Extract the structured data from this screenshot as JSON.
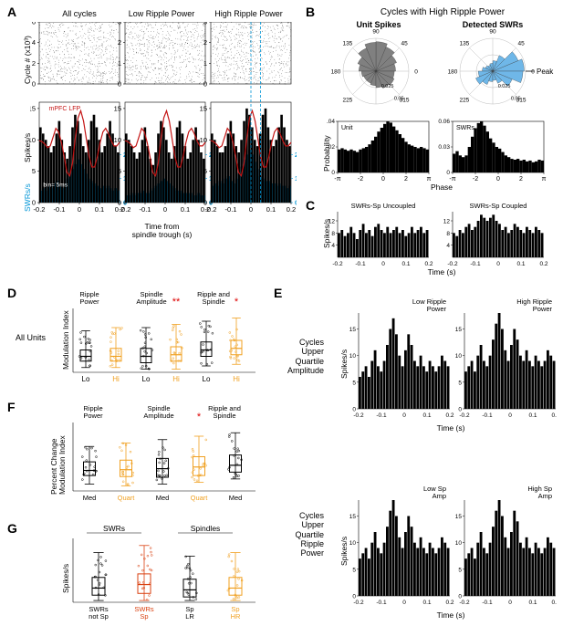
{
  "panels": {
    "A": {
      "label": "A",
      "col_titles": [
        "All cycles",
        "Low Ripple Power",
        "High Ripple Power"
      ],
      "ylabel_raster": "Cycle # (x10³)",
      "ylabel_psth1": "Spikes/s",
      "ylabel_psth2": "SWRs/s",
      "xlabel": "Time from\nspindle trough (s)",
      "raster_yticks": [
        0,
        1,
        2,
        3
      ],
      "raster_yticks_all": [
        0,
        2,
        4,
        6
      ],
      "psth_yticks_spikes": [
        0,
        5,
        10,
        15
      ],
      "psth_yticks_swrs": [
        0,
        1,
        2
      ],
      "xticks": [
        -0.2,
        -0.1,
        0,
        0.1,
        0.2
      ],
      "bin_note": "bin= 5ms",
      "lfp_label": "mPFC LFP",
      "lfp_color": "#c41414",
      "swr_bar_color": "#0095d6",
      "swr_axis_color": "#0095d6",
      "bar_color": "#000000",
      "raster_bg": "#ffffff",
      "psth_data_all": [
        12,
        11,
        10,
        9,
        8,
        9,
        11,
        13,
        10,
        8,
        7,
        9,
        12,
        14,
        13,
        11,
        9,
        8,
        10,
        13,
        14,
        12,
        10,
        8,
        9,
        11,
        13,
        11,
        9,
        8
      ],
      "psth_data_lo": [
        11,
        10,
        9,
        8,
        7,
        8,
        10,
        12,
        9,
        7,
        6,
        8,
        11,
        13,
        12,
        10,
        8,
        7,
        9,
        12,
        13,
        11,
        9,
        7,
        8,
        10,
        12,
        10,
        8,
        7
      ],
      "psth_data_hi": [
        11,
        10,
        9,
        8,
        8,
        9,
        11,
        13,
        11,
        9,
        8,
        10,
        13,
        15,
        14,
        12,
        10,
        9,
        11,
        14,
        15,
        12,
        10,
        9,
        10,
        12,
        14,
        12,
        10,
        9
      ],
      "swr_data_all": [
        0.5,
        0.6,
        0.5,
        0.7,
        0.6,
        0.8,
        0.9,
        0.7,
        0.6,
        0.8,
        1.0,
        1.2,
        1.4,
        1.6,
        1.8,
        1.6,
        1.4,
        1.2,
        1.0,
        0.9,
        0.8,
        0.7,
        0.6,
        0.7,
        0.6,
        0.7,
        0.6,
        0.5,
        0.6,
        0.5
      ],
      "swr_data_lo": [
        0.3,
        0.3,
        0.4,
        0.3,
        0.4,
        0.4,
        0.5,
        0.4,
        0.4,
        0.5,
        0.6,
        0.7,
        0.8,
        0.9,
        1.0,
        0.9,
        0.8,
        0.7,
        0.6,
        0.5,
        0.5,
        0.4,
        0.4,
        0.4,
        0.4,
        0.3,
        0.3,
        0.4,
        0.3,
        0.3
      ],
      "swr_data_hi": [
        0.7,
        0.8,
        0.7,
        0.9,
        0.8,
        1.0,
        1.1,
        0.9,
        0.8,
        1.0,
        1.2,
        1.5,
        1.8,
        2.0,
        2.2,
        2.0,
        1.7,
        1.4,
        1.1,
        1.0,
        0.9,
        0.9,
        0.8,
        0.8,
        0.7,
        0.8,
        0.7,
        0.7,
        0.6,
        0.7
      ],
      "lfp_wave": [
        0.05,
        0.02,
        -0.05,
        -0.15,
        -0.1,
        0.15,
        0.4,
        0.3,
        0.0,
        -0.4,
        -0.85,
        -0.95,
        -0.6,
        0.1,
        0.7,
        0.9,
        0.6,
        0.1,
        -0.4,
        -0.7,
        -0.7,
        -0.4,
        0.0,
        0.3,
        0.4,
        0.25,
        0.05,
        -0.1,
        -0.1,
        0.0
      ]
    },
    "B": {
      "label": "B",
      "title": "Cycles with High Ripple Power",
      "sub_titles": [
        "Unit Spikes",
        "Detected SWRs"
      ],
      "polar_angles": [
        0,
        45,
        90,
        135,
        180,
        225,
        270,
        315
      ],
      "polar_rticks": [
        0,
        0.025,
        0.05
      ],
      "unit_polar_vals": [
        0.03,
        0.034,
        0.04,
        0.045,
        0.044,
        0.038,
        0.03,
        0.026,
        0.022,
        0.02,
        0.02,
        0.022,
        0.025,
        0.028,
        0.03,
        0.028
      ],
      "swr_polar_vals": [
        0.048,
        0.042,
        0.026,
        0.016,
        0.012,
        0.01,
        0.012,
        0.016,
        0.022,
        0.028,
        0.022,
        0.016,
        0.014,
        0.02,
        0.032,
        0.046
      ],
      "unit_polar_color": "#808080",
      "swr_polar_color": "#6fb7e8",
      "peak_label": "Peak",
      "hist_ylabel": "Probability",
      "hist_xlabel": "Phase",
      "hist_xticks": [
        "-π",
        "-2",
        "0",
        "2",
        "π"
      ],
      "unit_hist_label": "Unit",
      "swr_hist_label": "SWRs",
      "unit_hist_ymax": 0.04,
      "swr_hist_ymax": 0.06,
      "unit_hist": [
        0.018,
        0.019,
        0.018,
        0.017,
        0.018,
        0.017,
        0.016,
        0.018,
        0.019,
        0.02,
        0.022,
        0.025,
        0.028,
        0.032,
        0.035,
        0.038,
        0.04,
        0.039,
        0.036,
        0.033,
        0.03,
        0.027,
        0.024,
        0.022,
        0.021,
        0.02,
        0.019,
        0.02,
        0.019,
        0.018
      ],
      "swr_hist": [
        0.022,
        0.025,
        0.02,
        0.018,
        0.02,
        0.03,
        0.042,
        0.052,
        0.058,
        0.06,
        0.055,
        0.048,
        0.04,
        0.035,
        0.03,
        0.028,
        0.024,
        0.02,
        0.018,
        0.016,
        0.015,
        0.016,
        0.014,
        0.015,
        0.013,
        0.014,
        0.012,
        0.013,
        0.015,
        0.014
      ]
    },
    "C": {
      "label": "C",
      "titles": [
        "SWRs-Sp Uncoupled",
        "SWRs-Sp Coupled"
      ],
      "ylabel": "Spikes/s",
      "xlabel": "Time (s)",
      "yticks": [
        4,
        8,
        12
      ],
      "xticks": [
        -0.2,
        -0.1,
        0,
        0.1,
        0.2
      ],
      "data_uncoupled": [
        8,
        9,
        7,
        8,
        10,
        8,
        6,
        9,
        11,
        8,
        9,
        7,
        10,
        11,
        9,
        8,
        10,
        8,
        9,
        10,
        8,
        9,
        7,
        8,
        10,
        8,
        9,
        10,
        8,
        9
      ],
      "data_coupled": [
        8,
        7,
        9,
        8,
        10,
        11,
        9,
        10,
        12,
        14,
        13,
        12,
        13,
        14,
        12,
        11,
        9,
        10,
        8,
        9,
        11,
        10,
        9,
        8,
        10,
        9,
        8,
        10,
        9,
        8
      ]
    },
    "D": {
      "label": "D",
      "side_label": "All Units",
      "ylabel": "Modulation Index",
      "col_titles": [
        "Ripple\nPower",
        "Spindle\nAmplitude",
        "Ripple and\nSpindle"
      ],
      "xticklabels": [
        "Lo",
        "Hi",
        "Lo",
        "Hi",
        "Lo",
        "Hi"
      ],
      "hi_color": "#f0a020",
      "lo_color": "#000000",
      "ymax": 2.0,
      "box_data": {
        "lo_rp": {
          "q1": 0.35,
          "med": 0.5,
          "q3": 0.7,
          "wlo": 0.15,
          "whi": 1.3
        },
        "hi_rp": {
          "q1": 0.35,
          "med": 0.5,
          "q3": 0.75,
          "wlo": 0.15,
          "whi": 1.4
        },
        "lo_sa": {
          "q1": 0.3,
          "med": 0.5,
          "q3": 0.75,
          "wlo": 0.1,
          "whi": 1.4
        },
        "hi_sa": {
          "q1": 0.35,
          "med": 0.55,
          "q3": 0.8,
          "wlo": 0.1,
          "whi": 1.5
        },
        "lo_rs": {
          "q1": 0.5,
          "med": 0.7,
          "q3": 0.95,
          "wlo": 0.2,
          "whi": 1.6
        },
        "hi_rs": {
          "q1": 0.55,
          "med": 0.75,
          "q3": 1.0,
          "wlo": 0.25,
          "whi": 1.7
        }
      },
      "sig_markers": [
        "**",
        "*"
      ]
    },
    "E": {
      "label": "E",
      "row1_label": "Cycles\nUpper\nQuartile\nAmplitude",
      "row2_label": "Cycles\nUpper\nQuartile\nRipple\nPower",
      "col_titles_row1": [
        "Low Ripple\nPower",
        "High Ripple\nPower"
      ],
      "col_titles_row2": [
        "Low Sp\nAmp",
        "High Sp\nAmp"
      ],
      "ylabel": "Spikes/s",
      "xlabel": "Time (s)",
      "xticks": [
        -0.2,
        -0.1,
        0,
        0.1,
        0.2
      ],
      "ymax": 18,
      "yticks": [
        0,
        5,
        10,
        15
      ],
      "data_r1c1": [
        6,
        7,
        8,
        6,
        9,
        11,
        8,
        7,
        9,
        12,
        15,
        17,
        14,
        10,
        8,
        11,
        14,
        12,
        9,
        8,
        10,
        8,
        7,
        9,
        8,
        7,
        8,
        10,
        9,
        8
      ],
      "data_r1c2": [
        7,
        8,
        9,
        7,
        10,
        12,
        9,
        8,
        10,
        13,
        16,
        18,
        15,
        11,
        9,
        12,
        15,
        13,
        10,
        9,
        11,
        9,
        8,
        10,
        9,
        8,
        9,
        11,
        10,
        9
      ],
      "data_r2c1": [
        7,
        8,
        9,
        7,
        10,
        12,
        9,
        8,
        10,
        13,
        16,
        18,
        15,
        11,
        9,
        12,
        15,
        13,
        10,
        9,
        11,
        9,
        8,
        10,
        9,
        8,
        9,
        11,
        10,
        9
      ],
      "data_r2c2": [
        7,
        8,
        9,
        7,
        10,
        12,
        9,
        8,
        10,
        13,
        16,
        18,
        15,
        11,
        9,
        12,
        16,
        14,
        10,
        9,
        11,
        9,
        8,
        10,
        9,
        8,
        9,
        11,
        10,
        9
      ]
    },
    "F": {
      "label": "F",
      "ylabel": "Percent Change\nModulation Index",
      "col_titles": [
        "Ripple\nPower",
        "Spindle\nAmplitude",
        "Ripple and\nSpindle"
      ],
      "xticklabels": [
        "Med",
        "Quart",
        "Med",
        "Quart",
        "Med"
      ],
      "quart_color": "#f0a020",
      "ymin": -50,
      "ymax": 150,
      "box_data": {
        "med_rp": {
          "q1": -5,
          "med": 10,
          "q3": 35,
          "wlo": -30,
          "whi": 80
        },
        "qrt_rp": {
          "q1": -8,
          "med": 12,
          "q3": 40,
          "wlo": -35,
          "whi": 90
        },
        "med_sa": {
          "q1": -10,
          "med": 15,
          "q3": 45,
          "wlo": -30,
          "whi": 100
        },
        "qrt_sa": {
          "q1": -5,
          "med": 20,
          "q3": 50,
          "wlo": -25,
          "whi": 110
        },
        "med_rs": {
          "q1": 5,
          "med": 25,
          "q3": 55,
          "wlo": -15,
          "whi": 120
        }
      },
      "sig_markers": [
        "*"
      ]
    },
    "G": {
      "label": "G",
      "ylabel": "Spikes/s",
      "group_titles": [
        "SWRs",
        "Spindles"
      ],
      "xticklabels": [
        "SWRs\nnot Sp",
        "SWRs\nSp",
        "Sp\nLR",
        "Sp\nHR"
      ],
      "colors": [
        "#000000",
        "#d94010",
        "#000000",
        "#f0a020"
      ],
      "ymax": 18,
      "box_data": {
        "b1": {
          "q1": 2,
          "med": 4,
          "q3": 7,
          "wlo": 0.5,
          "whi": 14
        },
        "b2": {
          "q1": 2.5,
          "med": 5,
          "q3": 8,
          "wlo": 0.5,
          "whi": 16
        },
        "b3": {
          "q1": 1.5,
          "med": 3.5,
          "q3": 6.5,
          "wlo": 0.5,
          "whi": 13
        },
        "b4": {
          "q1": 2,
          "med": 4,
          "q3": 7,
          "wlo": 0.5,
          "whi": 14
        }
      }
    }
  },
  "colors": {
    "black": "#000000",
    "cyan": "#0095d6",
    "red": "#c41414",
    "orange": "#f0a020",
    "dark_orange": "#d94010",
    "gray": "#808080",
    "lightblue": "#6fb7e8",
    "bg": "#ffffff"
  },
  "fonts": {
    "panel_label_size": 14,
    "title_size": 9,
    "tick_size": 7.5,
    "label_size": 8.5
  }
}
